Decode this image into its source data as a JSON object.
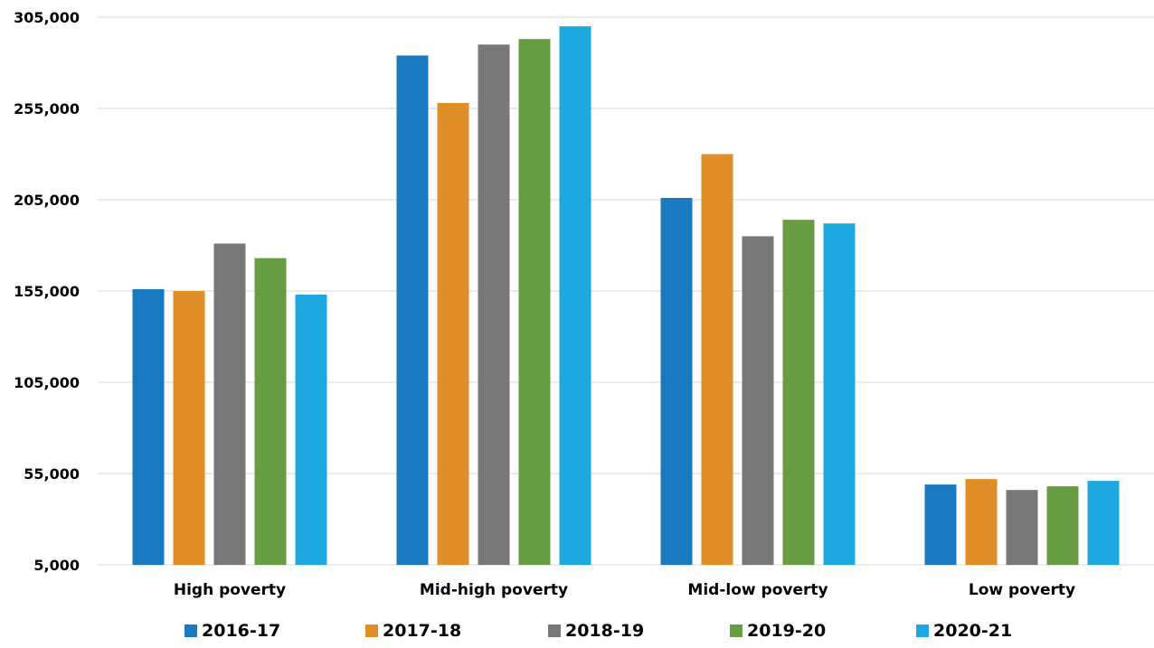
{
  "chart_data": {
    "type": "bar",
    "title": "",
    "xlabel": "",
    "ylabel": "",
    "categories": [
      "High poverty",
      "Mid-high poverty",
      "Mid-low poverty",
      "Low poverty"
    ],
    "series": [
      {
        "name": "2016-17",
        "color": "#1a7abf",
        "values": [
          156000,
          284000,
          206000,
          49000
        ]
      },
      {
        "name": "2017-18",
        "color": "#e08f28",
        "values": [
          155000,
          258000,
          230000,
          52000
        ]
      },
      {
        "name": "2018-19",
        "color": "#787878",
        "values": [
          181000,
          290000,
          185000,
          46000
        ]
      },
      {
        "name": "2019-20",
        "color": "#679c43",
        "values": [
          173000,
          293000,
          194000,
          48000
        ]
      },
      {
        "name": "2020-21",
        "color": "#1ea8e0",
        "values": [
          153000,
          300000,
          192000,
          51000
        ]
      }
    ],
    "y_ticks": [
      5000,
      55000,
      105000,
      155000,
      205000,
      255000,
      305000
    ],
    "y_tick_labels": [
      "5,000",
      "55,000",
      "105,000",
      "155,000",
      "205,000",
      "255,000",
      "305,000"
    ],
    "ylim": [
      5000,
      305000
    ],
    "grid": true,
    "legend_position": "bottom"
  }
}
